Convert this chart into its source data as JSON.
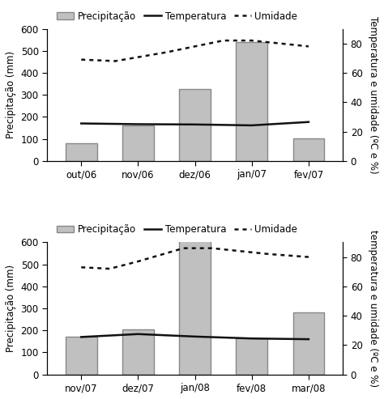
{
  "chart1": {
    "months": [
      "out/06",
      "nov/06",
      "dez/06",
      "jan/07",
      "fev/07"
    ],
    "precipitation": [
      80,
      160,
      325,
      540,
      103
    ],
    "temperature_right": [
      25.5,
      25.0,
      24.8,
      24.2,
      26.5
    ],
    "humidity_right": [
      69,
      68,
      74,
      82,
      82,
      80,
      78
    ],
    "humidity_x": [
      0,
      0.6,
      1.5,
      2.5,
      3.0,
      3.5,
      4
    ],
    "ylim_left": [
      0,
      600
    ],
    "ylim_right": [
      0,
      90
    ]
  },
  "chart2": {
    "months": [
      "nov/07",
      "dez/07",
      "jan/08",
      "fev/08",
      "mar/08"
    ],
    "precipitation": [
      170,
      205,
      620,
      165,
      283
    ],
    "temperature_right": [
      25.5,
      27.5,
      25.8,
      24.5,
      24.0
    ],
    "humidity_right": [
      73,
      72,
      77,
      86,
      86,
      84,
      82,
      80
    ],
    "humidity_x": [
      0,
      0.5,
      1.0,
      1.8,
      2.3,
      2.8,
      3.3,
      4
    ],
    "ylim_left": [
      0,
      600
    ],
    "ylim_right": [
      0,
      90
    ]
  },
  "bar_color": "#c0c0c0",
  "bar_edgecolor": "#888888",
  "line_color": "#111111",
  "humidity_color": "#111111",
  "ylabel_left": "Precipitação (mm)",
  "ylabel_right": "Temperatura e umidade (ºC e %)",
  "legend_labels": [
    "Precipitação",
    "Temperatura",
    "Umidade"
  ],
  "figsize": [
    4.74,
    4.93
  ],
  "dpi": 100,
  "background_color": "#ffffff"
}
